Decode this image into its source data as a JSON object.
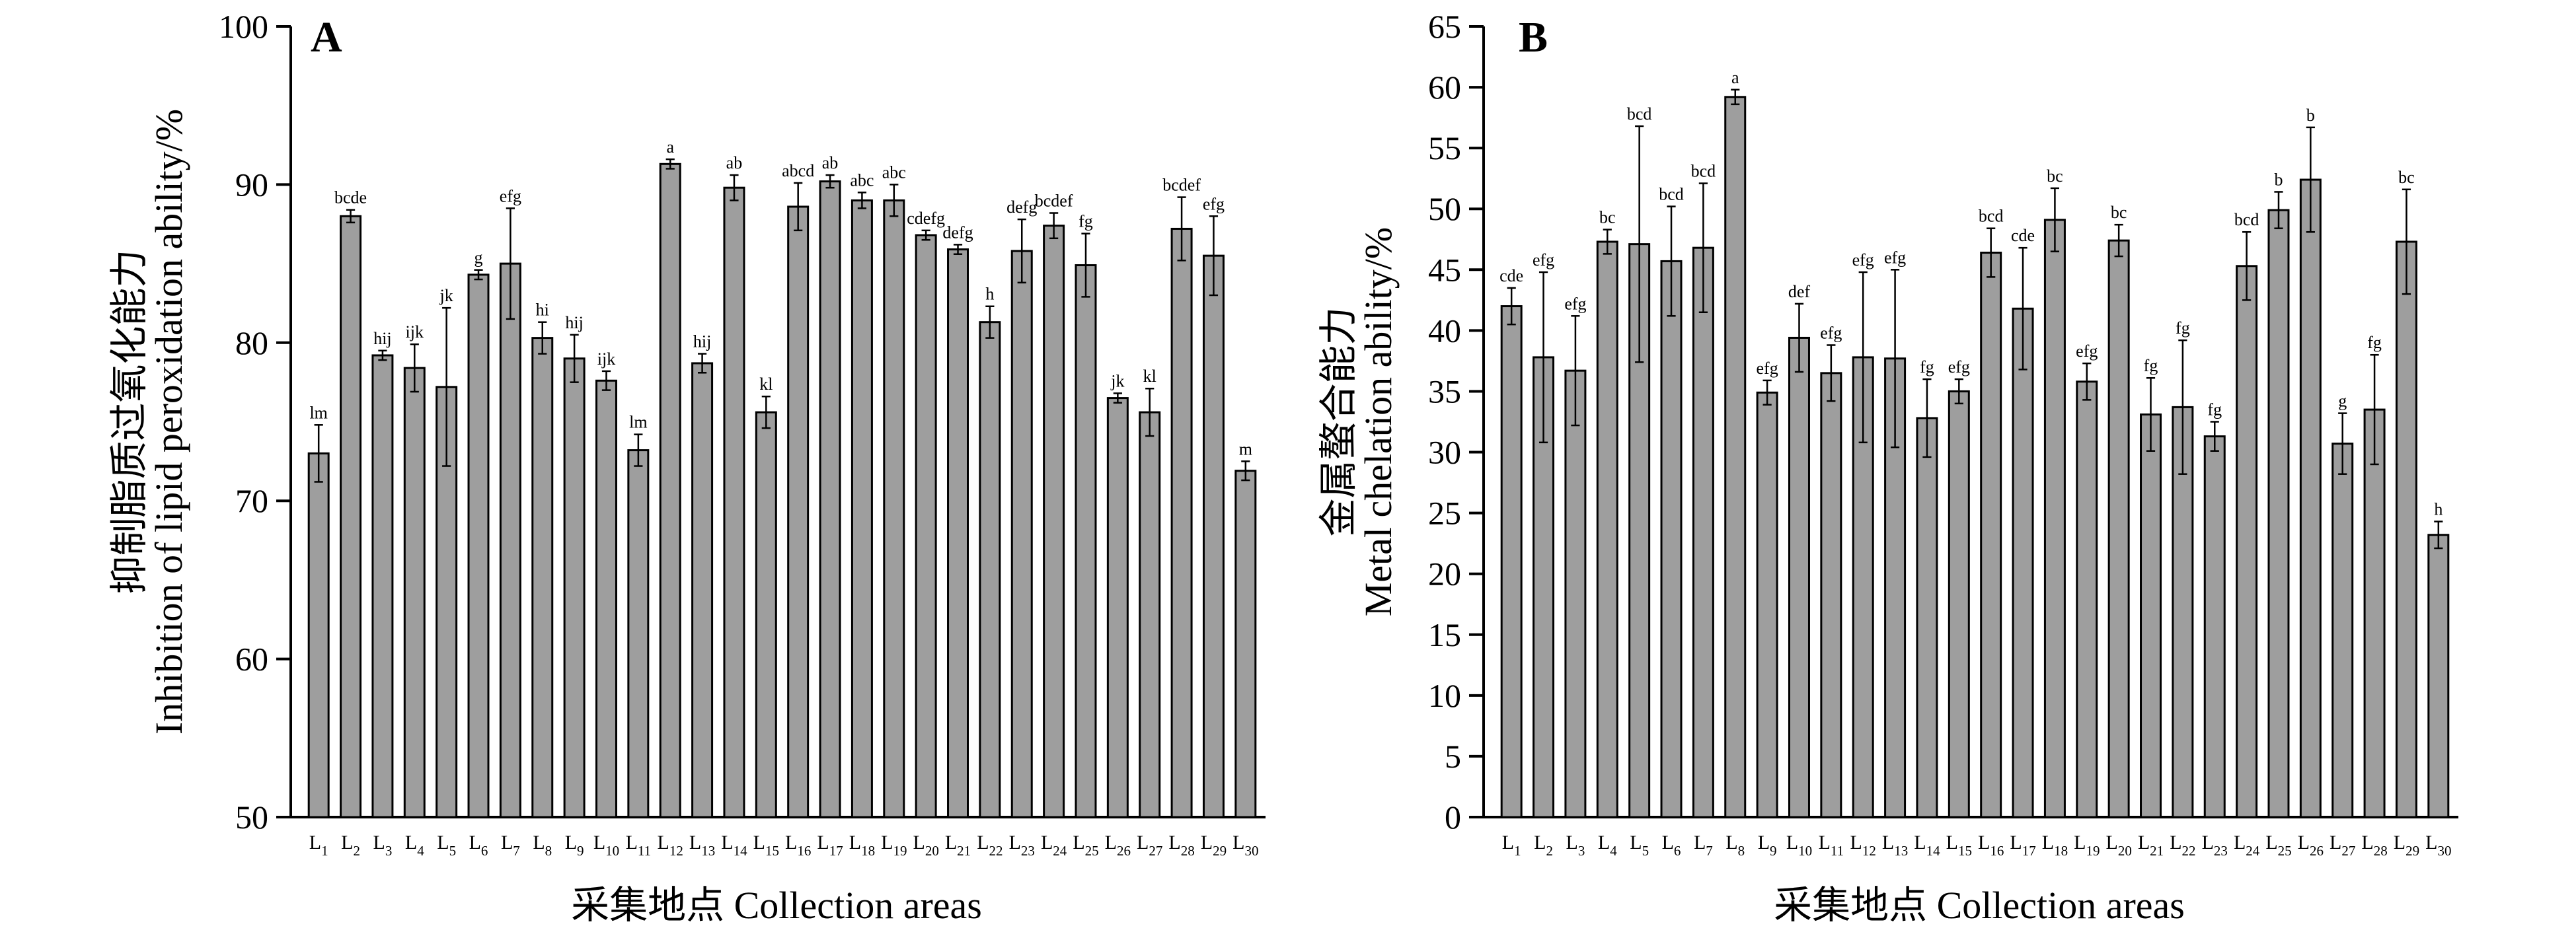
{
  "chart_data": [
    {
      "type": "bar",
      "panel": "A",
      "title": "",
      "xlabel": "采集地点 Collection areas",
      "ylabel_cn": "抑制脂质过氧化能力",
      "ylabel_en": "Inhibition of lipid peroxidation ability/%",
      "ylim": [
        50,
        100
      ],
      "yticks": [
        50,
        60,
        70,
        80,
        90,
        100
      ],
      "categories": [
        "L1",
        "L2",
        "L3",
        "L4",
        "L5",
        "L6",
        "L7",
        "L8",
        "L9",
        "L10",
        "L11",
        "L12",
        "L13",
        "L14",
        "L15",
        "L16",
        "L17",
        "L18",
        "L19",
        "L20",
        "L21",
        "L22",
        "L23",
        "L24",
        "L25",
        "L26",
        "L27",
        "L28",
        "L29",
        "L30"
      ],
      "values": [
        73.0,
        88.0,
        79.2,
        78.4,
        77.2,
        84.3,
        85.0,
        80.3,
        79.0,
        77.6,
        73.2,
        91.3,
        78.7,
        89.8,
        75.6,
        88.6,
        90.2,
        89.0,
        89.0,
        86.8,
        85.9,
        81.3,
        85.8,
        87.4,
        84.9,
        76.5,
        75.6,
        87.2,
        85.5,
        71.9
      ],
      "errors": [
        1.8,
        0.4,
        0.3,
        1.5,
        5.0,
        0.3,
        3.5,
        1.0,
        1.5,
        0.6,
        1.0,
        0.3,
        0.6,
        0.8,
        1.0,
        1.5,
        0.4,
        0.5,
        1.0,
        0.3,
        0.3,
        1.0,
        2.0,
        0.8,
        2.0,
        0.3,
        1.5,
        2.0,
        2.5,
        0.6
      ],
      "significance": [
        "lm",
        "bcde",
        "hij",
        "ijk",
        "jk",
        "g",
        "efg",
        "hi",
        "hij",
        "ijk",
        "lm",
        "a",
        "hij",
        "ab",
        "kl",
        "abcd",
        "ab",
        "abc",
        "abc",
        "cdefg",
        "defg",
        "h",
        "defg",
        "bcdef",
        "fg",
        "jk",
        "kl",
        "bcdef",
        "efg",
        "m"
      ]
    },
    {
      "type": "bar",
      "panel": "B",
      "title": "",
      "xlabel": "采集地点 Collection areas",
      "ylabel_cn": "金属螯合能力",
      "ylabel_en": "Metal chelation ability/%",
      "ylim": [
        0,
        65
      ],
      "yticks": [
        0,
        5,
        10,
        15,
        20,
        25,
        30,
        35,
        40,
        45,
        50,
        55,
        60,
        65
      ],
      "categories": [
        "L1",
        "L2",
        "L3",
        "L4",
        "L5",
        "L6",
        "L7",
        "L8",
        "L9",
        "L10",
        "L11",
        "L12",
        "L13",
        "L14",
        "L15",
        "L16",
        "L17",
        "L18",
        "L19",
        "L20",
        "L21",
        "L22",
        "L23",
        "L24",
        "L25",
        "L26",
        "L27",
        "L28",
        "L29",
        "L30"
      ],
      "values": [
        42.0,
        37.8,
        36.7,
        47.3,
        47.1,
        45.7,
        46.8,
        59.2,
        34.9,
        39.4,
        36.5,
        37.8,
        37.7,
        32.8,
        35.0,
        46.4,
        41.8,
        49.1,
        35.8,
        47.4,
        33.1,
        33.7,
        31.3,
        45.3,
        49.9,
        52.4,
        30.7,
        33.5,
        47.3,
        23.2
      ],
      "errors": [
        1.5,
        7.0,
        4.5,
        1.0,
        9.7,
        4.5,
        5.3,
        0.6,
        1.0,
        2.8,
        2.3,
        7.0,
        7.3,
        3.2,
        1.0,
        2.0,
        5.0,
        2.6,
        1.5,
        1.3,
        3.0,
        5.5,
        1.2,
        2.8,
        1.5,
        4.3,
        2.5,
        4.5,
        4.3,
        1.1
      ],
      "significance": [
        "cde",
        "efg",
        "efg",
        "bc",
        "bcd",
        "bcd",
        "bcd",
        "a",
        "efg",
        "def",
        "efg",
        "efg",
        "efg",
        "fg",
        "efg",
        "bcd",
        "cde",
        "bc",
        "efg",
        "bc",
        "fg",
        "fg",
        "fg",
        "bcd",
        "b",
        "b",
        "g",
        "fg",
        "bc",
        "h"
      ]
    }
  ]
}
